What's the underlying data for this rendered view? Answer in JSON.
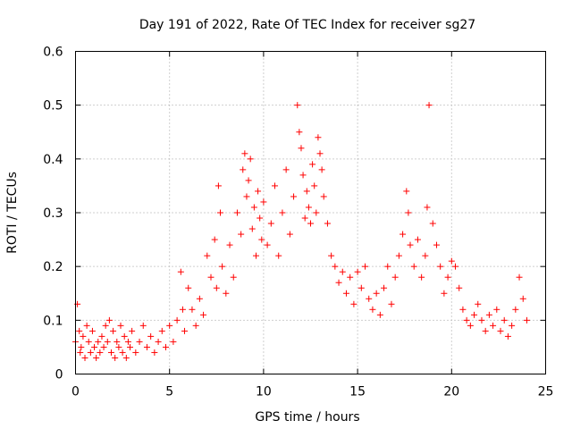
{
  "chart_data": {
    "type": "scatter",
    "title": "Day 191 of 2022, Rate Of TEC Index for receiver sg27",
    "xlabel": "GPS time / hours",
    "ylabel": "ROTI / TECUs",
    "xlim": [
      0,
      25
    ],
    "ylim": [
      0,
      0.6
    ],
    "x_ticks": [
      "0",
      "5",
      "10",
      "15",
      "20",
      "25"
    ],
    "y_ticks": [
      "0",
      "0.1",
      "0.2",
      "0.3",
      "0.4",
      "0.5",
      "0.6"
    ],
    "grid": true,
    "marker": "+",
    "color": "#ff0000",
    "series": [
      {
        "x": [
          0.0,
          0.1,
          0.2,
          0.25,
          0.3,
          0.4,
          0.5,
          0.6,
          0.7,
          0.8,
          0.9,
          1.0,
          1.1,
          1.2,
          1.3,
          1.4,
          1.5,
          1.6,
          1.7,
          1.8,
          1.9,
          2.0,
          2.1,
          2.2,
          2.3,
          2.4,
          2.5,
          2.6,
          2.7,
          2.8,
          2.9,
          3.0,
          3.2,
          3.4,
          3.6,
          3.8,
          4.0,
          4.2,
          4.4,
          4.6,
          4.8,
          5.0,
          5.2,
          5.4,
          5.6,
          5.7,
          5.8,
          6.0,
          6.2,
          6.4,
          6.6,
          6.8,
          7.0,
          7.2,
          7.4,
          7.5,
          7.6,
          7.7,
          7.8,
          8.0,
          8.2,
          8.4,
          8.6,
          8.8,
          8.9,
          9.0,
          9.1,
          9.2,
          9.3,
          9.4,
          9.5,
          9.6,
          9.7,
          9.8,
          9.9,
          10.0,
          10.2,
          10.4,
          10.6,
          10.8,
          11.0,
          11.2,
          11.4,
          11.6,
          11.8,
          11.9,
          12.0,
          12.1,
          12.2,
          12.3,
          12.4,
          12.5,
          12.6,
          12.7,
          12.8,
          12.9,
          13.0,
          13.1,
          13.2,
          13.4,
          13.6,
          13.8,
          14.0,
          14.2,
          14.4,
          14.6,
          14.8,
          15.0,
          15.2,
          15.4,
          15.6,
          15.8,
          16.0,
          16.2,
          16.4,
          16.6,
          16.8,
          17.0,
          17.2,
          17.4,
          17.6,
          17.7,
          17.8,
          18.0,
          18.2,
          18.4,
          18.6,
          18.7,
          18.8,
          19.0,
          19.2,
          19.4,
          19.6,
          19.8,
          20.0,
          20.2,
          20.4,
          20.6,
          20.8,
          21.0,
          21.2,
          21.4,
          21.6,
          21.8,
          22.0,
          22.2,
          22.4,
          22.6,
          22.8,
          23.0,
          23.2,
          23.4,
          23.6,
          23.8,
          24.0
        ],
        "y": [
          0.06,
          0.13,
          0.08,
          0.04,
          0.05,
          0.07,
          0.03,
          0.09,
          0.06,
          0.04,
          0.08,
          0.05,
          0.03,
          0.06,
          0.04,
          0.07,
          0.05,
          0.09,
          0.06,
          0.1,
          0.04,
          0.08,
          0.03,
          0.06,
          0.05,
          0.09,
          0.04,
          0.07,
          0.03,
          0.06,
          0.05,
          0.08,
          0.04,
          0.06,
          0.09,
          0.05,
          0.07,
          0.04,
          0.06,
          0.08,
          0.05,
          0.09,
          0.06,
          0.1,
          0.19,
          0.12,
          0.08,
          0.16,
          0.12,
          0.09,
          0.14,
          0.11,
          0.22,
          0.18,
          0.25,
          0.16,
          0.35,
          0.3,
          0.2,
          0.15,
          0.24,
          0.18,
          0.3,
          0.26,
          0.38,
          0.41,
          0.33,
          0.36,
          0.4,
          0.27,
          0.31,
          0.22,
          0.34,
          0.29,
          0.25,
          0.32,
          0.24,
          0.28,
          0.35,
          0.22,
          0.3,
          0.38,
          0.26,
          0.33,
          0.5,
          0.45,
          0.42,
          0.37,
          0.29,
          0.34,
          0.31,
          0.28,
          0.39,
          0.35,
          0.3,
          0.44,
          0.41,
          0.38,
          0.33,
          0.28,
          0.22,
          0.2,
          0.17,
          0.19,
          0.15,
          0.18,
          0.13,
          0.19,
          0.16,
          0.2,
          0.14,
          0.12,
          0.15,
          0.11,
          0.16,
          0.2,
          0.13,
          0.18,
          0.22,
          0.26,
          0.34,
          0.3,
          0.24,
          0.2,
          0.25,
          0.18,
          0.22,
          0.31,
          0.5,
          0.28,
          0.24,
          0.2,
          0.15,
          0.18,
          0.21,
          0.2,
          0.16,
          0.12,
          0.1,
          0.09,
          0.11,
          0.13,
          0.1,
          0.08,
          0.11,
          0.09,
          0.12,
          0.08,
          0.1,
          0.07,
          0.09,
          0.12,
          0.18,
          0.14,
          0.1
        ]
      }
    ]
  }
}
